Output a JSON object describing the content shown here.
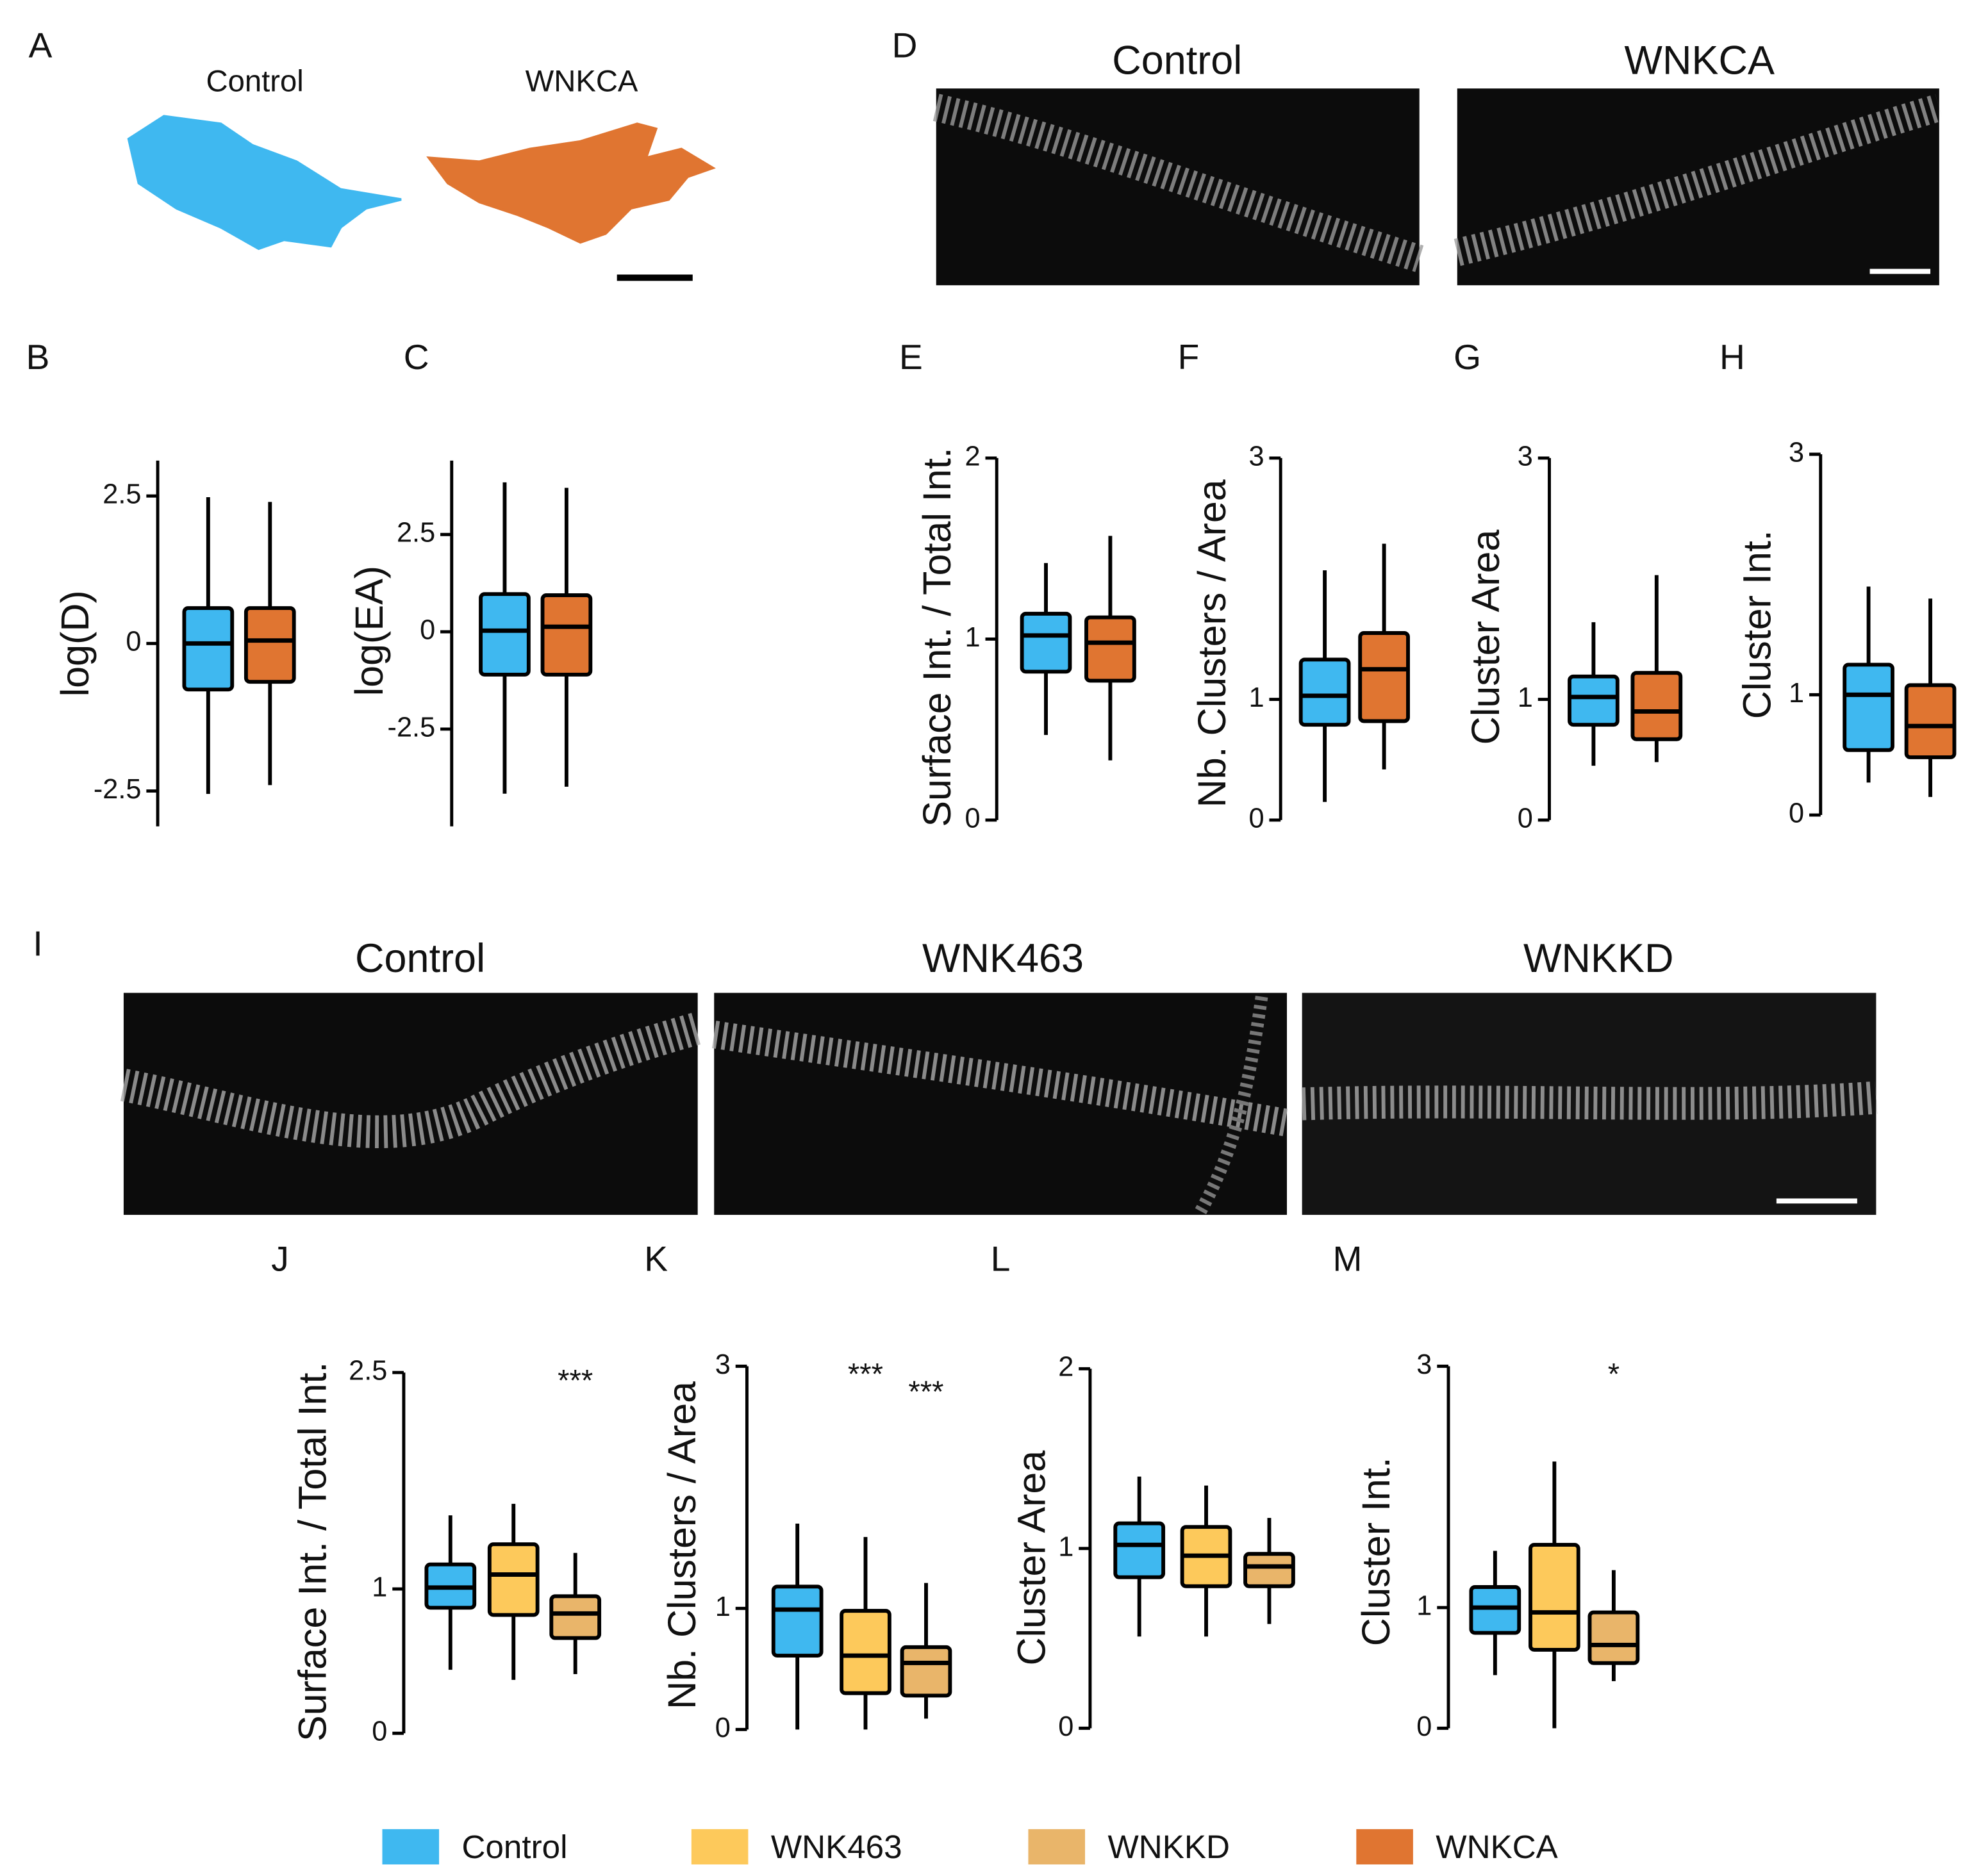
{
  "image_panels": [
    {
      "label": "A",
      "titles": [
        "Control",
        "WNKCA"
      ]
    },
    {
      "label": "D",
      "titles": [
        "Control",
        "WNKCA"
      ]
    },
    {
      "label": "I",
      "titles": [
        "Control",
        "WNK463",
        "WNKKD"
      ]
    }
  ],
  "legend": [
    {
      "name": "Control",
      "color": "#3fb8f0"
    },
    {
      "name": "WNK463",
      "color": "#fdc95b"
    },
    {
      "name": "WNKKD",
      "color": "#e9b56a"
    },
    {
      "name": "WNKCA",
      "color": "#e07531"
    }
  ],
  "chart_data": [
    {
      "type": "box",
      "label": "B",
      "ylabel": "log(D)",
      "ylim": [
        -3.1,
        3.1
      ],
      "yticks": [
        {
          "value": 2.5,
          "label": "2.5"
        },
        0,
        {
          "value": -2.5,
          "label": "-2.5"
        }
      ],
      "series": [
        {
          "name": "Control",
          "color": "#3fb8f0",
          "values": [
            -2.55,
            -0.78,
            0,
            0.6,
            2.48
          ]
        },
        {
          "name": "WNKCA",
          "color": "#e07531",
          "values": [
            -2.4,
            -0.65,
            0.05,
            0.6,
            2.4
          ]
        }
      ]
    },
    {
      "type": "box",
      "label": "C",
      "ylabel": "log(EA)",
      "ylim": [
        -5,
        4.4
      ],
      "yticks": [
        {
          "value": 2.5,
          "label": "2.5"
        },
        0,
        {
          "value": -2.5,
          "label": "-2.5"
        }
      ],
      "series": [
        {
          "name": "Control",
          "color": "#3fb8f0",
          "values": [
            -4.16,
            -1.1,
            0.03,
            0.97,
            3.84
          ]
        },
        {
          "name": "WNKCA",
          "color": "#e07531",
          "values": [
            -3.98,
            -1.1,
            0.13,
            0.94,
            3.7
          ]
        }
      ]
    },
    {
      "type": "box",
      "label": "E",
      "ylabel": "Surface Int. / Total Int.",
      "ylim": [
        0,
        2
      ],
      "yticks": [
        0,
        1,
        2
      ],
      "series": [
        {
          "name": "Control",
          "color": "#3fb8f0",
          "values": [
            0.47,
            0.82,
            1.02,
            1.14,
            1.42
          ]
        },
        {
          "name": "WNKCA",
          "color": "#e07531",
          "values": [
            0.33,
            0.77,
            0.98,
            1.12,
            1.57
          ]
        }
      ]
    },
    {
      "type": "box",
      "label": "F",
      "ylabel": "Nb. Clusters / Area",
      "ylim": [
        0,
        3
      ],
      "yticks": [
        0,
        1,
        3
      ],
      "series": [
        {
          "name": "Control",
          "color": "#3fb8f0",
          "values": [
            0.15,
            0.79,
            1.03,
            1.33,
            2.07
          ]
        },
        {
          "name": "WNKCA",
          "color": "#e07531",
          "values": [
            0.42,
            0.82,
            1.25,
            1.55,
            2.29
          ]
        }
      ]
    },
    {
      "type": "box",
      "label": "G",
      "ylabel": "Cluster  Area",
      "ylim": [
        0,
        3
      ],
      "yticks": [
        0,
        1,
        3
      ],
      "series": [
        {
          "name": "Control",
          "color": "#3fb8f0",
          "values": [
            0.45,
            0.79,
            1.02,
            1.19,
            1.64
          ]
        },
        {
          "name": "WNKCA",
          "color": "#e07531",
          "values": [
            0.48,
            0.67,
            0.9,
            1.22,
            2.03
          ]
        }
      ]
    },
    {
      "type": "box",
      "label": "H",
      "ylabel": "Cluster  Int.",
      "ylim": [
        0,
        3
      ],
      "yticks": [
        0,
        1,
        3
      ],
      "series": [
        {
          "name": "Control",
          "color": "#3fb8f0",
          "values": [
            0.27,
            0.54,
            1.0,
            1.25,
            1.9
          ]
        },
        {
          "name": "WNKCA",
          "color": "#e07531",
          "values": [
            0.15,
            0.48,
            0.74,
            1.08,
            1.8
          ]
        }
      ]
    },
    {
      "type": "box",
      "label": "J",
      "ylabel": "Surface Int. / Total Int.",
      "ylim": [
        0,
        2.5
      ],
      "yticks": [
        0,
        1,
        2.5
      ],
      "annotations": [
        null,
        null,
        "***"
      ],
      "series": [
        {
          "name": "Control",
          "color": "#3fb8f0",
          "values": [
            0.44,
            0.87,
            1.01,
            1.17,
            1.51
          ]
        },
        {
          "name": "WNK463",
          "color": "#fdc95b",
          "values": [
            0.37,
            0.82,
            1.1,
            1.31,
            1.59
          ]
        },
        {
          "name": "WNKKD",
          "color": "#e9b56a",
          "values": [
            0.41,
            0.66,
            0.83,
            0.95,
            1.25
          ]
        }
      ]
    },
    {
      "type": "box",
      "label": "K",
      "ylabel": "Nb. Clusters / Area",
      "ylim": [
        0,
        3
      ],
      "yticks": [
        0,
        1,
        3
      ],
      "annotations": [
        null,
        "***",
        "***"
      ],
      "series": [
        {
          "name": "Control",
          "color": "#3fb8f0",
          "values": [
            0,
            0.61,
            0.99,
            1.18,
            1.7
          ]
        },
        {
          "name": "WNK463",
          "color": "#fdc95b",
          "values": [
            0,
            0.3,
            0.61,
            0.98,
            1.59
          ]
        },
        {
          "name": "WNKKD",
          "color": "#e9b56a",
          "values": [
            0.09,
            0.28,
            0.55,
            0.68,
            1.21
          ]
        }
      ]
    },
    {
      "type": "box",
      "label": "L",
      "ylabel": "Cluster  Area",
      "ylim": [
        0,
        2
      ],
      "yticks": [
        0,
        1,
        2
      ],
      "series": [
        {
          "name": "Control",
          "color": "#3fb8f0",
          "values": [
            0.51,
            0.84,
            1.02,
            1.14,
            1.4
          ]
        },
        {
          "name": "WNK463",
          "color": "#fdc95b",
          "values": [
            0.51,
            0.79,
            0.96,
            1.12,
            1.35
          ]
        },
        {
          "name": "WNKKD",
          "color": "#e9b56a",
          "values": [
            0.58,
            0.79,
            0.9,
            0.97,
            1.17
          ]
        }
      ]
    },
    {
      "type": "box",
      "label": "M",
      "ylabel": "Cluster  Int.",
      "ylim": [
        0,
        3
      ],
      "yticks": [
        0,
        1,
        3
      ],
      "annotations": [
        null,
        null,
        "*"
      ],
      "series": [
        {
          "name": "Control",
          "color": "#3fb8f0",
          "values": [
            0.44,
            0.79,
            1.0,
            1.17,
            1.47
          ]
        },
        {
          "name": "WNK463",
          "color": "#fdc95b",
          "values": [
            0,
            0.65,
            0.96,
            1.52,
            2.21
          ]
        },
        {
          "name": "WNKKD",
          "color": "#e9b56a",
          "values": [
            0.39,
            0.54,
            0.69,
            0.96,
            1.31
          ]
        }
      ]
    }
  ]
}
